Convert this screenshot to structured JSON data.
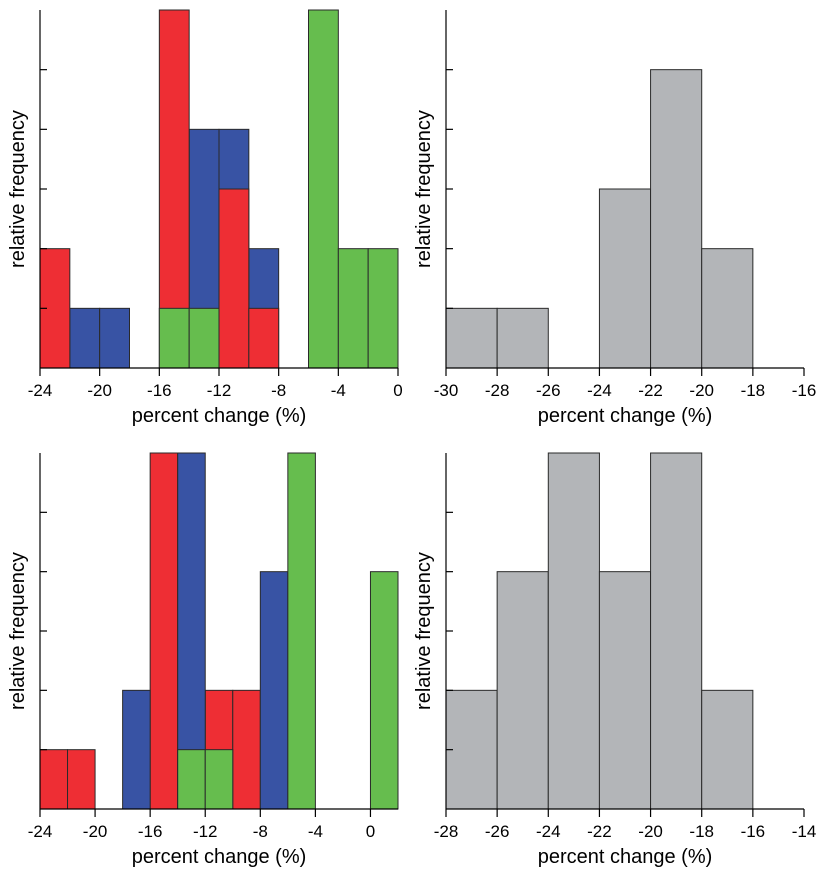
{
  "colors": {
    "red": "#EE2E34",
    "blue": "#3853A4",
    "green": "#66BD4E",
    "gray": "#B3B5B8",
    "edge": "#2a2a2a"
  },
  "chart_data": [
    {
      "id": "top-left",
      "type": "bar",
      "title": "",
      "xlabel": "percent change (%)",
      "ylabel": "relative frequency",
      "xlim": [
        -24,
        0
      ],
      "ylim": [
        0,
        6
      ],
      "xticks": [
        -24,
        -20,
        -16,
        -12,
        -8,
        -4,
        0
      ],
      "xtick_labels": [
        "-24",
        "-20",
        "-16",
        "-12",
        "-8",
        "-4",
        "0"
      ],
      "yticks": [
        1,
        2,
        3,
        4,
        5
      ],
      "bin_width": 2,
      "series": [
        {
          "name": "blue",
          "color": "blue",
          "bins": [
            [
              -22,
              0,
              1
            ],
            [
              -20,
              0,
              1
            ],
            [
              -14,
              0,
              4
            ],
            [
              -12,
              0,
              4
            ],
            [
              -10,
              0,
              2
            ]
          ]
        },
        {
          "name": "red",
          "color": "red",
          "bins": [
            [
              -24,
              0,
              2
            ],
            [
              -16,
              0,
              6
            ],
            [
              -12,
              0,
              3
            ],
            [
              -10,
              0,
              1
            ]
          ]
        },
        {
          "name": "green",
          "color": "green",
          "bins": [
            [
              -16,
              0,
              1
            ],
            [
              -14,
              0,
              1
            ],
            [
              -6,
              0,
              6
            ],
            [
              -4,
              0,
              2
            ],
            [
              -2,
              0,
              2
            ]
          ]
        }
      ]
    },
    {
      "id": "top-right",
      "type": "bar",
      "title": "",
      "xlabel": "percent change (%)",
      "ylabel": "relative frequency",
      "xlim": [
        -30,
        -16
      ],
      "ylim": [
        0,
        6
      ],
      "xticks": [
        -30,
        -28,
        -26,
        -24,
        -22,
        -20,
        -18,
        -16
      ],
      "xtick_labels": [
        "-30",
        "-28",
        "-26",
        "-24",
        "-22",
        "-20",
        "-18",
        "-16"
      ],
      "yticks": [
        1,
        2,
        3,
        4,
        5
      ],
      "bin_width": 2,
      "series": [
        {
          "name": "all",
          "color": "gray",
          "bins": [
            [
              -30,
              0,
              1
            ],
            [
              -28,
              0,
              1
            ],
            [
              -24,
              0,
              3
            ],
            [
              -22,
              0,
              5
            ],
            [
              -20,
              0,
              2
            ]
          ]
        }
      ]
    },
    {
      "id": "bottom-left",
      "type": "bar",
      "title": "",
      "xlabel": "percent change (%)",
      "ylabel": "relative frequency",
      "xlim": [
        -24,
        2
      ],
      "ylim": [
        0,
        6
      ],
      "xticks": [
        -24,
        -20,
        -16,
        -12,
        -8,
        -4,
        0
      ],
      "xtick_labels": [
        "-24",
        "-20",
        "-16",
        "-12",
        "-8",
        "-4",
        "0"
      ],
      "yticks": [
        1,
        2,
        3,
        4,
        5
      ],
      "bin_width": 2,
      "series": [
        {
          "name": "red",
          "color": "red",
          "bins": [
            [
              -24,
              0,
              1
            ],
            [
              -22,
              0,
              1
            ],
            [
              -16,
              0,
              6
            ],
            [
              -12,
              0,
              2
            ],
            [
              -10,
              0,
              2
            ]
          ]
        },
        {
          "name": "blue",
          "color": "blue",
          "bins": [
            [
              -18,
              0,
              2
            ],
            [
              -14,
              0,
              6
            ],
            [
              -8,
              0,
              4
            ]
          ]
        },
        {
          "name": "green",
          "color": "green",
          "bins": [
            [
              -14,
              0,
              1
            ],
            [
              -12,
              0,
              1
            ],
            [
              -6,
              0,
              6
            ],
            [
              0,
              0,
              4
            ]
          ]
        }
      ]
    },
    {
      "id": "bottom-right",
      "type": "bar",
      "title": "",
      "xlabel": "percent change (%)",
      "ylabel": "relative frequency",
      "xlim": [
        -28,
        -14
      ],
      "ylim": [
        0,
        6
      ],
      "xticks": [
        -28,
        -26,
        -24,
        -22,
        -20,
        -18,
        -16,
        -14
      ],
      "xtick_labels": [
        "-28",
        "-26",
        "-24",
        "-22",
        "-20",
        "-18",
        "-16",
        "-14"
      ],
      "yticks": [
        1,
        2,
        3,
        4,
        5
      ],
      "bin_width": 2,
      "series": [
        {
          "name": "all",
          "color": "gray",
          "bins": [
            [
              -28,
              0,
              2
            ],
            [
              -26,
              0,
              4
            ],
            [
              -24,
              0,
              6
            ],
            [
              -22,
              0,
              4
            ],
            [
              -20,
              0,
              6
            ],
            [
              -18,
              0,
              2
            ]
          ]
        }
      ]
    }
  ]
}
